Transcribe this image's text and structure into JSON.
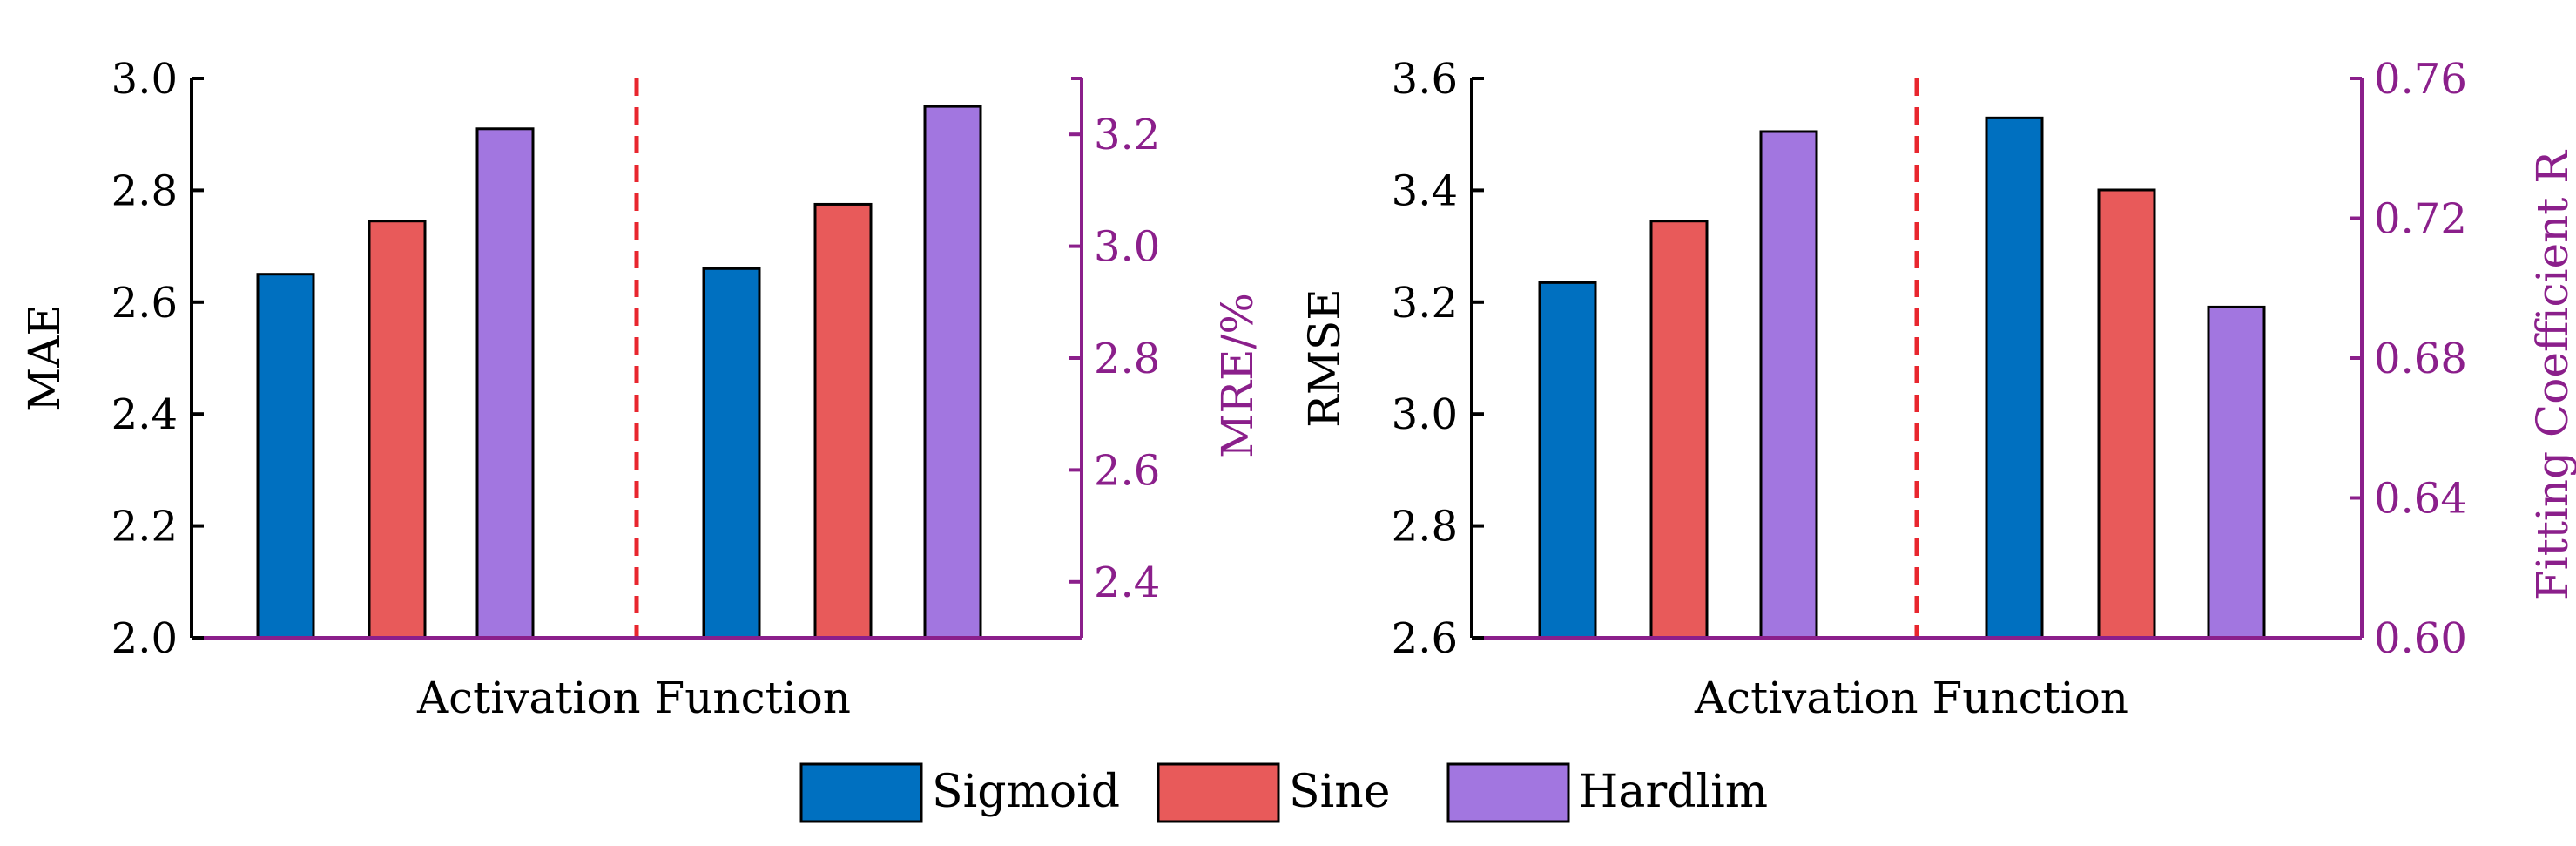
{
  "legend": [
    {
      "label": "Sigmoid",
      "color": "#0070C0"
    },
    {
      "label": "Sine",
      "color": "#E85A5A"
    },
    {
      "label": "Hardlim",
      "color": "#A276E0"
    }
  ],
  "colors": {
    "right_axis": "#8B1F8B",
    "divider": "#E8262E",
    "left_axis": "#000000"
  },
  "chart_data": [
    {
      "type": "bar",
      "title": "",
      "xlabel": "Activation Function",
      "ylabel": "MAE",
      "y2label": "MRE/%",
      "ylim": [
        2.0,
        3.0
      ],
      "yticks": [
        "2.0",
        "2.2",
        "2.4",
        "2.6",
        "2.8",
        "3.0"
      ],
      "y2lim": [
        2.3,
        3.3
      ],
      "y2ticks": [
        "2.4",
        "2.6",
        "2.8",
        "3.0",
        "3.2"
      ],
      "groups": [
        {
          "name": "MAE",
          "axis": "left",
          "series": [
            {
              "name": "Sigmoid",
              "value": 2.65
            },
            {
              "name": "Sine",
              "value": 2.745
            },
            {
              "name": "Hardlim",
              "value": 2.91
            }
          ]
        },
        {
          "name": "MRE/%",
          "axis": "right",
          "series": [
            {
              "name": "Sigmoid",
              "value": 2.96
            },
            {
              "name": "Sine",
              "value": 3.075
            },
            {
              "name": "Hardlim",
              "value": 3.25
            }
          ]
        }
      ]
    },
    {
      "type": "bar",
      "title": "",
      "xlabel": "Activation Function",
      "ylabel": "RMSE",
      "y2label": "Fitting Coefficient R",
      "ylim": [
        2.6,
        3.6
      ],
      "yticks": [
        "2.6",
        "2.8",
        "3.0",
        "3.2",
        "3.4",
        "3.6"
      ],
      "y2lim": [
        0.6,
        0.76
      ],
      "y2ticks": [
        "0.60",
        "0.64",
        "0.68",
        "0.72",
        "0.76"
      ],
      "groups": [
        {
          "name": "RMSE",
          "axis": "left",
          "series": [
            {
              "name": "Sigmoid",
              "value": 3.235
            },
            {
              "name": "Sine",
              "value": 3.345
            },
            {
              "name": "Hardlim",
              "value": 3.505
            }
          ]
        },
        {
          "name": "Fitting Coefficient R",
          "axis": "right",
          "series": [
            {
              "name": "Sigmoid",
              "value": 0.7487
            },
            {
              "name": "Sine",
              "value": 0.7281
            },
            {
              "name": "Hardlim",
              "value": 0.6946
            }
          ]
        }
      ]
    }
  ]
}
